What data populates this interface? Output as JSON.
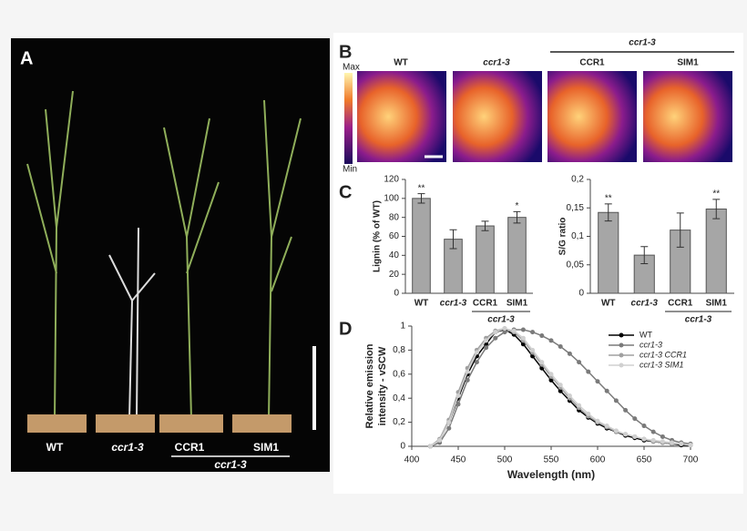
{
  "figure": {
    "panel_labels": [
      "A",
      "B",
      "C",
      "D"
    ],
    "plants": [
      "WT",
      "ccr1-3",
      "CCR1",
      "SIM1"
    ],
    "plants_group": "ccr1-3",
    "colorbar": [
      "Max",
      "Min"
    ],
    "sections": [
      "WT",
      "ccr1-3",
      "CCR1",
      "SIM1"
    ],
    "sections_group": "ccr1-3"
  },
  "chart_data": [
    {
      "type": "bar",
      "ylabel": "Lignin (% of WT)",
      "categories": [
        "WT",
        "ccr1-3",
        "CCR1",
        "SIM1"
      ],
      "values": [
        100,
        57,
        71,
        80
      ],
      "errors": [
        5,
        10,
        5,
        6
      ],
      "significance": [
        "**",
        null,
        null,
        "*"
      ],
      "group_label": "ccr1-3",
      "color": "#a6a6a6",
      "ylim": [
        0,
        120
      ],
      "yticks": [
        0,
        20,
        40,
        60,
        80,
        100,
        120
      ]
    },
    {
      "type": "bar",
      "ylabel": "S/G ratio",
      "categories": [
        "WT",
        "ccr1-3",
        "CCR1",
        "SIM1"
      ],
      "values": [
        0.142,
        0.067,
        0.111,
        0.148
      ],
      "errors": [
        0.015,
        0.015,
        0.03,
        0.017
      ],
      "significance": [
        "**",
        null,
        null,
        "**"
      ],
      "group_label": "ccr1-3",
      "color": "#a6a6a6",
      "ylim": [
        0,
        0.2
      ],
      "yticks": [
        0,
        {
          "value": 0.05,
          "label": "0,05"
        },
        {
          "value": 0.1,
          "label": "0,1"
        },
        {
          "value": 0.15,
          "label": "0,15"
        },
        {
          "value": 0.2,
          "label": "0,2"
        }
      ]
    },
    {
      "type": "line",
      "xlabel": "Wavelength (nm)",
      "ylabel": [
        "Relative emission",
        "intensity - vSCW"
      ],
      "x": [
        420,
        430,
        440,
        450,
        460,
        470,
        480,
        490,
        500,
        510,
        520,
        530,
        540,
        550,
        560,
        570,
        580,
        590,
        600,
        610,
        620,
        630,
        640,
        650,
        660,
        670,
        680,
        690,
        700
      ],
      "series": [
        {
          "name": "WT",
          "color": "#000000",
          "values": [
            0,
            0.05,
            0.2,
            0.4,
            0.6,
            0.75,
            0.85,
            0.95,
            0.97,
            0.93,
            0.85,
            0.75,
            0.65,
            0.55,
            0.46,
            0.38,
            0.3,
            0.24,
            0.19,
            0.15,
            0.12,
            0.09,
            0.07,
            0.05,
            0.04,
            0.03,
            0.02,
            0.01,
            0.01
          ]
        },
        {
          "name": "ccr1-3",
          "color": "#7a7a7a",
          "values": [
            0,
            0.03,
            0.15,
            0.35,
            0.55,
            0.7,
            0.82,
            0.9,
            0.95,
            0.97,
            0.97,
            0.95,
            0.92,
            0.88,
            0.83,
            0.77,
            0.7,
            0.62,
            0.54,
            0.46,
            0.38,
            0.3,
            0.23,
            0.17,
            0.12,
            0.08,
            0.05,
            0.03,
            0.02
          ]
        },
        {
          "name": "ccr1-3 CCR1",
          "color": "#a0a0a0",
          "values": [
            0,
            0.06,
            0.22,
            0.45,
            0.65,
            0.8,
            0.9,
            0.96,
            0.98,
            0.95,
            0.88,
            0.78,
            0.68,
            0.58,
            0.49,
            0.4,
            0.32,
            0.25,
            0.2,
            0.16,
            0.12,
            0.1,
            0.08,
            0.06,
            0.04,
            0.03,
            0.02,
            0.02,
            0.01
          ]
        },
        {
          "name": "ccr1-3 SIM1",
          "color": "#d0d0d0",
          "values": [
            0,
            0.05,
            0.2,
            0.42,
            0.62,
            0.78,
            0.88,
            0.95,
            0.98,
            0.96,
            0.9,
            0.8,
            0.7,
            0.6,
            0.51,
            0.42,
            0.34,
            0.27,
            0.21,
            0.17,
            0.13,
            0.1,
            0.08,
            0.06,
            0.05,
            0.04,
            0.03,
            0.02,
            0.01
          ]
        }
      ],
      "xlim": [
        400,
        700
      ],
      "xticks": [
        400,
        450,
        500,
        550,
        600,
        650,
        700
      ],
      "ylim": [
        0,
        1
      ],
      "yticks": [
        0,
        {
          "value": 0.2,
          "label": "0,2"
        },
        {
          "value": 0.4,
          "label": "0,4"
        },
        {
          "value": 0.6,
          "label": "0,6"
        },
        {
          "value": 0.8,
          "label": "0,8"
        },
        1
      ]
    }
  ]
}
